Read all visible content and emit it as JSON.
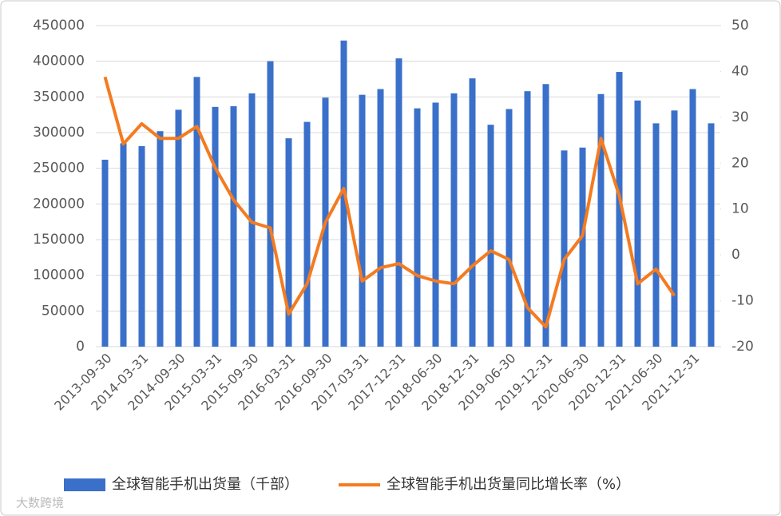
{
  "chart_data": {
    "type": "bar_line",
    "categories": [
      "2013-09-30",
      null,
      "2014-03-31",
      null,
      "2014-09-30",
      null,
      "2015-03-31",
      null,
      "2015-09-30",
      null,
      "2016-03-31",
      null,
      "2016-09-30",
      null,
      "2017-03-31",
      null,
      "2017-12-31",
      null,
      "2018-06-30",
      null,
      "2018-12-31",
      null,
      "2019-06-30",
      null,
      "2019-12-31",
      null,
      "2020-06-30",
      null,
      "2020-12-31",
      null,
      "2021-06-30",
      null,
      "2021-12-31",
      null
    ],
    "series": [
      {
        "name": "全球智能手机出货量（千部）",
        "type": "bar",
        "color": "#3a70c9",
        "values": [
          262000,
          285000,
          281000,
          302000,
          332000,
          378000,
          336000,
          337000,
          355000,
          400000,
          292000,
          315000,
          349000,
          429000,
          353000,
          361000,
          404000,
          334000,
          342000,
          355000,
          376000,
          311000,
          333000,
          358000,
          368000,
          275000,
          279000,
          354000,
          385000,
          345000,
          313000,
          331000,
          361000,
          313000
        ]
      },
      {
        "name": "全球智能手机出货量同比增长率（%）",
        "type": "line",
        "axis": "y2",
        "color": "#f47b20",
        "values": [
          38.8,
          24.2,
          28.6,
          25.4,
          25.4,
          28,
          19,
          12,
          7.1,
          5.9,
          -12.9,
          -6.3,
          7.1,
          14.5,
          -5.7,
          -2.8,
          -1.9,
          -4.5,
          -5.7,
          -6.3,
          -2.4,
          0.9,
          -1,
          -11.5,
          -15.7,
          -1,
          4.2,
          25.4,
          12.9,
          -6.3,
          -3.1,
          -8.9,
          null,
          null
        ]
      }
    ],
    "ylim": [
      0,
      450000
    ],
    "yticks": [
      0,
      50000,
      100000,
      150000,
      200000,
      250000,
      300000,
      350000,
      400000,
      450000
    ],
    "y2lim": [
      -20,
      50
    ],
    "y2ticks": [
      -20,
      -10,
      0,
      10,
      20,
      30,
      40,
      50
    ],
    "grid": true,
    "legend": "bottom",
    "watermark": "大数跨境"
  }
}
